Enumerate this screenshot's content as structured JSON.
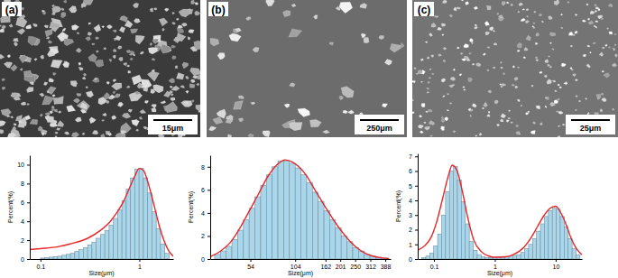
{
  "images": [
    {
      "label": "(a)",
      "scale_bar": "15μm"
    },
    {
      "label": "(b)",
      "scale_bar": "250μm"
    },
    {
      "label": "(c)",
      "scale_bar": "25μm"
    }
  ],
  "chart_data": [
    {
      "type": "histogram",
      "xlabel": "Size(μm)",
      "ylabel": "Percent(%)",
      "log": "x",
      "xlim": [
        0.078,
        2.2
      ],
      "xticks": [
        0.1,
        1
      ],
      "ylim": [
        0,
        11
      ],
      "yticks": [
        0,
        2,
        4,
        6,
        8,
        10
      ],
      "bins": [
        0.1,
        0.1105,
        0.1221,
        0.1349,
        0.1491,
        0.1647,
        0.182,
        0.2011,
        0.2222,
        0.2456,
        0.2714,
        0.2999,
        0.3314,
        0.3662,
        0.4046,
        0.4471,
        0.4941,
        0.546,
        0.6033,
        0.6666,
        0.7366,
        0.814,
        0.8995,
        0.9939,
        1.0983,
        1.2137,
        1.3411,
        1.4819,
        1.6375,
        1.8094,
        2.0
      ],
      "series": [
        {
          "type": "bar",
          "color": "#a9d6ea",
          "values": [
            0.1,
            0.15,
            0.2,
            0.25,
            0.3,
            0.4,
            0.5,
            0.6,
            0.8,
            1.0,
            1.2,
            1.5,
            1.8,
            2.2,
            2.6,
            3.0,
            3.6,
            4.3,
            5.2,
            6.2,
            7.4,
            8.6,
            9.5,
            9.6,
            8.6,
            7.0,
            5.0,
            3.2,
            1.6,
            0.6
          ]
        },
        {
          "type": "line",
          "color": "#e8262a",
          "x": [
            0.078,
            0.1,
            0.15,
            0.2,
            0.3,
            0.4,
            0.5,
            0.6,
            0.7,
            0.8,
            0.9,
            1.0,
            1.1,
            1.2,
            1.4,
            1.6,
            1.8,
            2.0,
            2.2
          ],
          "values": [
            1.0,
            1.1,
            1.3,
            1.6,
            2.2,
            3.0,
            3.9,
            5.0,
            6.2,
            7.6,
            8.8,
            9.6,
            9.4,
            8.4,
            5.8,
            3.4,
            1.8,
            0.8,
            0.3
          ]
        }
      ]
    },
    {
      "type": "histogram",
      "xlabel": "Size(μm)",
      "ylabel": "Percent(%)",
      "log": "x",
      "xlim": [
        30,
        420
      ],
      "xticks": [
        54,
        104,
        162,
        201,
        250,
        312,
        388
      ],
      "ylim": [
        0,
        9
      ],
      "yticks": [
        0,
        2,
        4,
        6,
        8
      ],
      "bins": [
        32,
        34.81,
        37.87,
        41.19,
        44.81,
        48.74,
        53.02,
        57.68,
        62.74,
        68.25,
        74.24,
        80.76,
        87.85,
        95.56,
        103.95,
        113.08,
        123.01,
        133.81,
        145.56,
        158.34,
        172.24,
        187.36,
        203.81,
        221.7,
        241.17,
        262.34,
        285.37,
        310.43,
        337.68,
        367.33,
        400
      ],
      "series": [
        {
          "type": "bar",
          "color": "#a9d6ea",
          "values": [
            0.4,
            0.7,
            1.1,
            1.7,
            2.5,
            3.4,
            4.4,
            5.4,
            6.4,
            7.3,
            8.0,
            8.5,
            8.5,
            8.3,
            7.9,
            7.3,
            6.6,
            5.8,
            5.0,
            4.2,
            3.4,
            2.7,
            2.0,
            1.5,
            1.0,
            0.7,
            0.4,
            0.25,
            0.15,
            0.08
          ]
        },
        {
          "type": "line",
          "color": "#e8262a",
          "x": [
            30,
            35,
            40,
            45,
            50,
            60,
            70,
            80,
            90,
            100,
            120,
            140,
            160,
            200,
            250,
            300,
            350,
            410
          ],
          "values": [
            0.2,
            0.7,
            1.4,
            2.4,
            3.5,
            5.5,
            7.2,
            8.2,
            8.6,
            8.4,
            7.4,
            5.9,
            4.6,
            2.6,
            1.1,
            0.4,
            0.15,
            0.05
          ]
        }
      ]
    },
    {
      "type": "histogram",
      "xlabel": "Size(μm)",
      "ylabel": "Percent(%)",
      "log": "x",
      "xlim": [
        0.054,
        27
      ],
      "xticks": [
        0.1,
        1,
        10
      ],
      "ylim": [
        0,
        7.2
      ],
      "yticks": [
        0,
        1,
        2,
        3,
        4,
        5,
        6,
        7
      ],
      "bins": [
        0.0631,
        0.0733,
        0.0851,
        0.0989,
        0.1148,
        0.1334,
        0.1549,
        0.1799,
        0.2089,
        0.2427,
        0.2818,
        0.3273,
        0.3802,
        0.4416,
        0.5129,
        0.5957,
        0.6918,
        0.8035,
        0.9333,
        1.0839,
        1.2589,
        1.4622,
        1.6982,
        1.9724,
        2.2909,
        2.6607,
        3.0903,
        3.5892,
        4.1687,
        4.8417,
        5.6234,
        6.5313,
        7.5858,
        8.8105,
        10.2329,
        11.885,
        13.8038,
        15.9956,
        18.6209,
        21.6272,
        25.1189
      ],
      "series": [
        {
          "type": "bar",
          "color": "#a9d6ea",
          "values": [
            0.1,
            0.2,
            0.4,
            0.9,
            1.7,
            3.0,
            4.6,
            6.0,
            6.3,
            5.4,
            3.9,
            2.4,
            1.2,
            0.6,
            0.3,
            0.15,
            0.1,
            0.1,
            0.1,
            0.1,
            0.12,
            0.15,
            0.2,
            0.25,
            0.3,
            0.45,
            0.7,
            1.0,
            1.4,
            1.9,
            2.4,
            2.9,
            3.3,
            3.5,
            3.4,
            2.9,
            2.2,
            1.4,
            0.7,
            0.3
          ]
        },
        {
          "type": "line",
          "color": "#e8262a",
          "x": [
            0.054,
            0.07,
            0.09,
            0.11,
            0.14,
            0.17,
            0.2,
            0.24,
            0.3,
            0.36,
            0.45,
            0.6,
            0.8,
            1.0,
            1.5,
            2,
            3,
            4,
            5,
            6.5,
            8,
            10,
            12,
            15,
            18,
            22,
            27
          ],
          "values": [
            0.6,
            0.9,
            1.5,
            2.5,
            4.2,
            5.6,
            6.4,
            6.0,
            4.4,
            2.8,
            1.3,
            0.5,
            0.2,
            0.12,
            0.15,
            0.3,
            0.8,
            1.5,
            2.2,
            3.0,
            3.45,
            3.6,
            3.2,
            2.3,
            1.4,
            0.7,
            0.3
          ]
        }
      ]
    }
  ]
}
